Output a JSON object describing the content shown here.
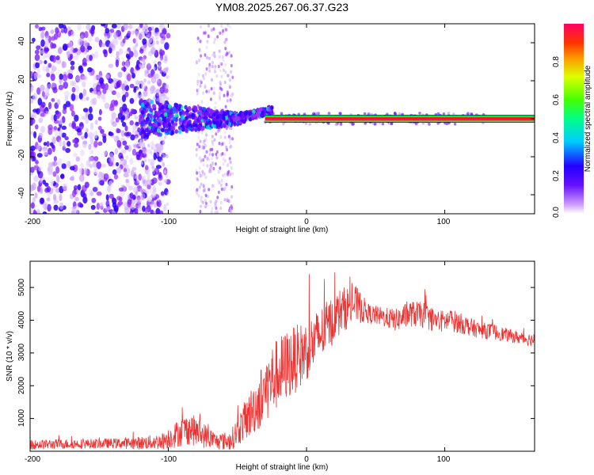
{
  "chart_data": [
    {
      "type": "heatmap",
      "title": "YM08.2025.267.06.37.G23",
      "xlabel": "Height of straight line (km)",
      "ylabel": "Frequency (Hz)",
      "xlim": [
        -200,
        165
      ],
      "ylim": [
        -50,
        50
      ],
      "xticks": [
        "-200",
        "-100",
        "0",
        "100"
      ],
      "yticks": [
        "40",
        "20",
        "0",
        "-20",
        "-40"
      ],
      "colorbar": {
        "label": "Normalized spectral amplitude",
        "range": [
          0,
          1
        ],
        "ticks": [
          "0.0",
          "0.2",
          "0.4",
          "0.6",
          "0.8"
        ],
        "colormap": [
          "#ffffff",
          "#9933ff",
          "#3300ff",
          "#00ccff",
          "#00ff66",
          "#ccff00",
          "#ffcc00",
          "#ff3300",
          "#ff0066"
        ]
      },
      "features": {
        "signal_line_frequency_hz": 0,
        "signal_line_start_km": -30,
        "diffuse_noise_region_km": [
          -200,
          -100
        ],
        "noise_band_km": [
          -80,
          -55
        ]
      }
    },
    {
      "type": "line",
      "xlabel": "Height of straight line (km)",
      "ylabel": "SNR (10 * v/v)",
      "xlim": [
        -200,
        165
      ],
      "ylim": [
        0,
        5800
      ],
      "xticks": [
        "-200",
        "-100",
        "0",
        "100"
      ],
      "yticks": [
        "1000",
        "2000",
        "3000",
        "4000",
        "5000"
      ],
      "color": "#ee3333",
      "series": [
        {
          "name": "SNR",
          "x": [
            -200,
            -180,
            -160,
            -140,
            -120,
            -105,
            -95,
            -85,
            -75,
            -65,
            -55,
            -45,
            -35,
            -25,
            -15,
            -5,
            5,
            15,
            25,
            35,
            45,
            55,
            65,
            75,
            85,
            95,
            105,
            115,
            125,
            135,
            145,
            155,
            165
          ],
          "values": [
            200,
            220,
            230,
            240,
            250,
            300,
            500,
            700,
            500,
            300,
            320,
            900,
            1500,
            2200,
            2600,
            2900,
            3300,
            3800,
            4300,
            4500,
            4200,
            4100,
            4000,
            4200,
            4150,
            3950,
            4000,
            3850,
            3700,
            3650,
            3550,
            3450,
            3400
          ],
          "noise_amplitude": [
            150,
            150,
            150,
            150,
            200,
            250,
            400,
            500,
            400,
            250,
            300,
            600,
            900,
            1100,
            1100,
            1000,
            900,
            800,
            700,
            600,
            300,
            300,
            350,
            400,
            400,
            350,
            350,
            300,
            250,
            250,
            200,
            200,
            200
          ]
        }
      ]
    }
  ]
}
